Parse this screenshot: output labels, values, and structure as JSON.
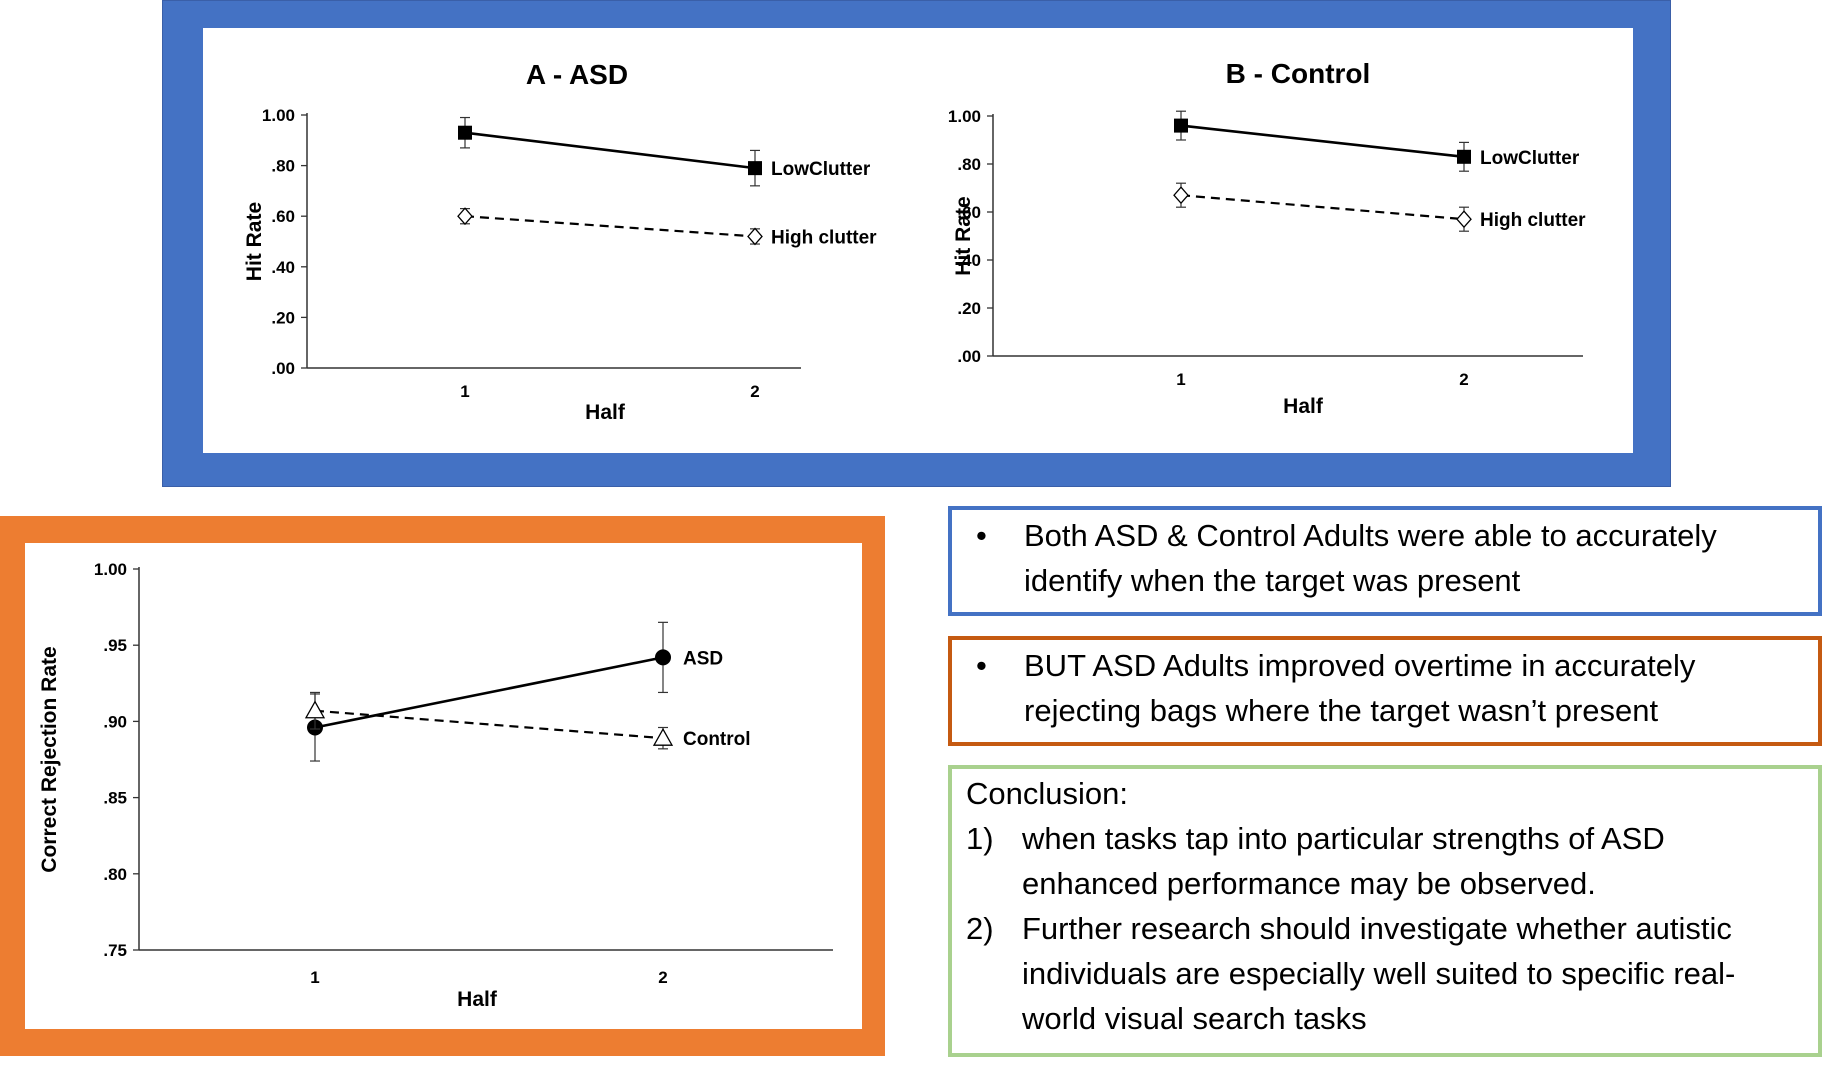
{
  "colors": {
    "top_frame": "#4472c4",
    "bottom_frame": "#ed7d31",
    "box1_border": "#4472c4",
    "box2_border": "#c55a11",
    "box3_border": "#a9d18e"
  },
  "chart_data": [
    {
      "type": "line",
      "title": "A - ASD",
      "xlabel": "Half",
      "ylabel": "Hit Rate",
      "categories": [
        "1",
        "2"
      ],
      "yticks": [
        ".00",
        ".20",
        ".40",
        ".60",
        ".80",
        "1.00"
      ],
      "ylim": [
        0,
        1
      ],
      "grid": false,
      "series": [
        {
          "name": "LowClutter",
          "values": [
            0.93,
            0.79
          ],
          "errors": [
            0.06,
            0.07
          ],
          "marker": "filled-square",
          "line": "solid"
        },
        {
          "name": "High clutter",
          "values": [
            0.6,
            0.52
          ],
          "errors": [
            0.03,
            0.03
          ],
          "marker": "open-diamond",
          "line": "dashed"
        }
      ]
    },
    {
      "type": "line",
      "title": "B - Control",
      "xlabel": "Half",
      "ylabel": "Hit Rate",
      "categories": [
        "1",
        "2"
      ],
      "yticks": [
        ".00",
        ".20",
        ".40",
        ".60",
        ".80",
        "1.00"
      ],
      "ylim": [
        0,
        1
      ],
      "grid": false,
      "series": [
        {
          "name": "LowClutter",
          "values": [
            0.96,
            0.83
          ],
          "errors": [
            0.06,
            0.06
          ],
          "marker": "filled-square",
          "line": "solid"
        },
        {
          "name": "High clutter",
          "values": [
            0.67,
            0.57
          ],
          "errors": [
            0.05,
            0.05
          ],
          "marker": "open-diamond",
          "line": "dashed"
        }
      ]
    },
    {
      "type": "line",
      "title": "",
      "xlabel": "Half",
      "ylabel": "Correct Rejection Rate",
      "categories": [
        "1",
        "2"
      ],
      "yticks": [
        ".75",
        ".80",
        ".85",
        ".90",
        ".95",
        "1.00"
      ],
      "ylim": [
        0.75,
        1.0
      ],
      "grid": false,
      "series": [
        {
          "name": "ASD",
          "values": [
            0.896,
            0.942
          ],
          "errors": [
            0.022,
            0.023
          ],
          "marker": "filled-circle",
          "line": "solid"
        },
        {
          "name": "Control",
          "values": [
            0.907,
            0.889
          ],
          "errors": [
            0.012,
            0.007
          ],
          "marker": "open-triangle",
          "line": "dashed"
        }
      ]
    }
  ],
  "text_boxes": {
    "box1_bullet": "•",
    "box1": "Both ASD & Control Adults were able to accurately identify when the target was present",
    "box2_bullet": "•",
    "box2": "BUT ASD Adults improved overtime in accurately rejecting bags where the target wasn’t present",
    "conclusion_title": "Conclusion:",
    "conclusion_items": [
      {
        "num": "1)",
        "text": "when tasks tap into particular strengths of ASD enhanced performance may be observed."
      },
      {
        "num": "2)",
        "text": "Further research should investigate whether autistic individuals are especially well suited to specific real-world visual search tasks"
      }
    ]
  }
}
